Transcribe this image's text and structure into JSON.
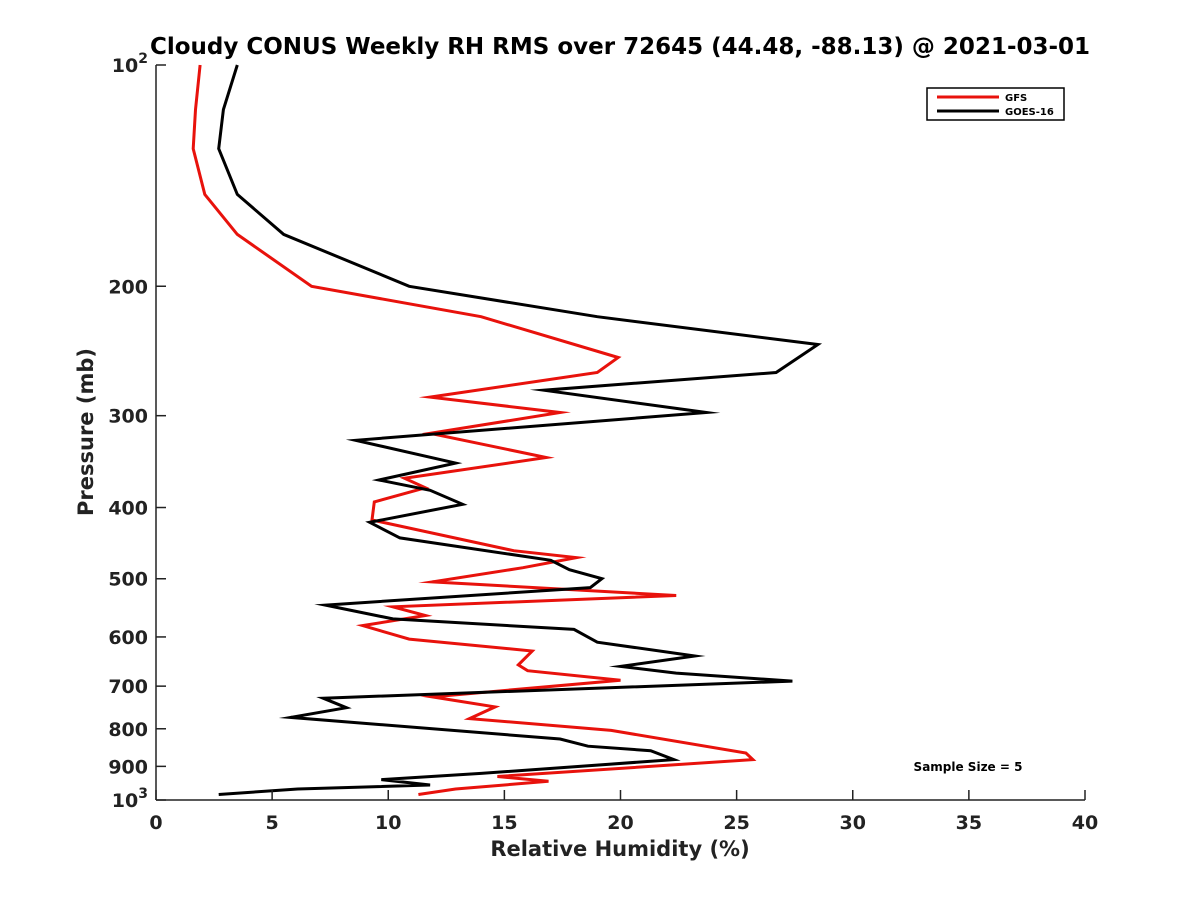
{
  "chart_data": {
    "type": "line",
    "title": "Cloudy CONUS Weekly RH RMS over 72645 (44.48, -88.13) @ 2021-03-01",
    "xlabel": "Relative Humidity (%)",
    "ylabel": "Pressure (mb)",
    "xlim": [
      0,
      40
    ],
    "ylim": [
      100,
      1000
    ],
    "y_scale": "log",
    "y_reversed": true,
    "x_ticks": [
      "0",
      "5",
      "10",
      "15",
      "20",
      "25",
      "30",
      "35",
      "40"
    ],
    "y_ticks": [
      {
        "value": 100,
        "base": "10",
        "exp": "2"
      },
      {
        "value": 200,
        "label": "200"
      },
      {
        "value": 300,
        "label": "300"
      },
      {
        "value": 400,
        "label": "400"
      },
      {
        "value": 500,
        "label": "500"
      },
      {
        "value": 600,
        "label": "600"
      },
      {
        "value": 700,
        "label": "700"
      },
      {
        "value": 800,
        "label": "800"
      },
      {
        "value": 900,
        "label": "900"
      },
      {
        "value": 1000,
        "base": "10",
        "exp": "3"
      }
    ],
    "legend_position": "top-right",
    "grid": false,
    "annotation": "Sample Size = 5",
    "series": [
      {
        "name": "GFS",
        "color": "#e8120c",
        "points": [
          [
            1.9,
            100
          ],
          [
            1.7,
            115
          ],
          [
            1.6,
            130
          ],
          [
            2.1,
            150
          ],
          [
            3.5,
            170
          ],
          [
            6.7,
            200
          ],
          [
            14.0,
            220
          ],
          [
            19.9,
            250
          ],
          [
            19.0,
            262
          ],
          [
            11.8,
            283
          ],
          [
            17.4,
            297
          ],
          [
            11.8,
            317
          ],
          [
            16.8,
            342
          ],
          [
            10.7,
            365
          ],
          [
            11.6,
            376
          ],
          [
            9.4,
            393
          ],
          [
            9.3,
            416
          ],
          [
            15.4,
            458
          ],
          [
            18.1,
            468
          ],
          [
            15.8,
            483
          ],
          [
            11.9,
            505
          ],
          [
            22.4,
            527
          ],
          [
            10.2,
            546
          ],
          [
            11.6,
            561
          ],
          [
            8.9,
            579
          ],
          [
            10.9,
            604
          ],
          [
            16.2,
            627
          ],
          [
            15.6,
            655
          ],
          [
            16.0,
            667
          ],
          [
            20.0,
            687
          ],
          [
            11.9,
            724
          ],
          [
            14.6,
            747
          ],
          [
            13.5,
            775
          ],
          [
            19.6,
            804
          ],
          [
            25.4,
            863
          ],
          [
            25.7,
            881
          ],
          [
            14.7,
            929
          ],
          [
            16.9,
            943
          ],
          [
            12.9,
            966
          ],
          [
            11.3,
            983
          ]
        ]
      },
      {
        "name": "GOES-16",
        "color": "#000000",
        "points": [
          [
            3.5,
            100
          ],
          [
            2.9,
            115
          ],
          [
            2.7,
            130
          ],
          [
            3.5,
            150
          ],
          [
            5.5,
            170
          ],
          [
            10.9,
            200
          ],
          [
            19.0,
            220
          ],
          [
            28.5,
            240
          ],
          [
            26.7,
            262
          ],
          [
            16.7,
            277
          ],
          [
            23.7,
            297
          ],
          [
            8.6,
            324
          ],
          [
            12.9,
            348
          ],
          [
            9.6,
            367
          ],
          [
            11.8,
            379
          ],
          [
            13.2,
            396
          ],
          [
            9.2,
            419
          ],
          [
            10.5,
            440
          ],
          [
            17.0,
            472
          ],
          [
            17.8,
            486
          ],
          [
            19.2,
            500
          ],
          [
            18.7,
            514
          ],
          [
            7.3,
            543
          ],
          [
            10.2,
            567
          ],
          [
            18.0,
            586
          ],
          [
            19.0,
            610
          ],
          [
            23.2,
            637
          ],
          [
            20.0,
            658
          ],
          [
            22.4,
            672
          ],
          [
            27.4,
            689
          ],
          [
            7.2,
            727
          ],
          [
            8.2,
            749
          ],
          [
            5.8,
            772
          ],
          [
            17.4,
            826
          ],
          [
            18.6,
            845
          ],
          [
            21.3,
            857
          ],
          [
            22.3,
            881
          ],
          [
            14.0,
            920
          ],
          [
            9.7,
            938
          ],
          [
            11.8,
            954
          ],
          [
            6.1,
            966
          ],
          [
            2.7,
            983
          ]
        ]
      }
    ]
  }
}
